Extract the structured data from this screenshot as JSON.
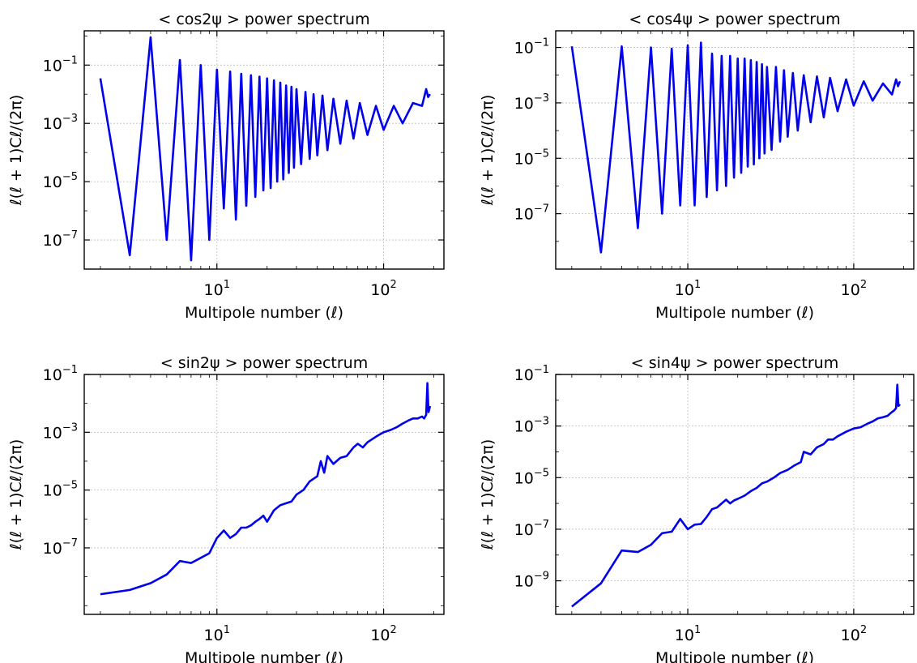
{
  "figure": {
    "line_color": "#0000ee",
    "grid": true,
    "grid_style": "dotted"
  },
  "chart_data": [
    {
      "type": "line",
      "title": "< cos2ψ >  power spectrum",
      "xlabel": "Multipole number (ℓ)",
      "ylabel": "ℓ(ℓ + 1)Cℓ/(2π)",
      "xscale": "log",
      "yscale": "log",
      "xlim": [
        1.6,
        230
      ],
      "ylim": [
        1e-08,
        1.5
      ],
      "xticks": [
        {
          "base": "10",
          "exp": "1",
          "value": 10
        },
        {
          "base": "10",
          "exp": "2",
          "value": 100
        }
      ],
      "yticks": [
        {
          "base": "10",
          "exp": "−1",
          "value": 0.1
        },
        {
          "base": "10",
          "exp": "−3",
          "value": 0.001
        },
        {
          "base": "10",
          "exp": "−5",
          "value": 1e-05
        },
        {
          "base": "10",
          "exp": "−7",
          "value": 1e-07
        }
      ],
      "series": [
        {
          "x": [
            2,
            3,
            4,
            5,
            6,
            7,
            8,
            9,
            10,
            11,
            12,
            13,
            14,
            15,
            16,
            17,
            18,
            19,
            20,
            21,
            22,
            23,
            24,
            25,
            26,
            27,
            28,
            29,
            30,
            32,
            34,
            36,
            38,
            40,
            43,
            46,
            50,
            55,
            60,
            66,
            72,
            80,
            90,
            100,
            115,
            130,
            150,
            170,
            180,
            185,
            190
          ],
          "y": [
            0.035,
            3e-08,
            0.9,
            1e-07,
            0.15,
            2e-08,
            0.1,
            1e-07,
            0.07,
            1.2e-06,
            0.06,
            5e-07,
            0.05,
            1.5e-06,
            0.045,
            3e-06,
            0.04,
            5e-06,
            0.035,
            6e-06,
            0.03,
            1e-05,
            0.025,
            1.2e-05,
            0.02,
            2e-05,
            0.018,
            3e-05,
            0.015,
            4e-05,
            0.012,
            6e-05,
            0.01,
            8e-05,
            0.009,
            0.00012,
            0.007,
            0.0002,
            0.006,
            0.0003,
            0.005,
            0.0004,
            0.004,
            0.0006,
            0.004,
            0.001,
            0.005,
            0.004,
            0.015,
            0.008,
            0.01
          ]
        }
      ]
    },
    {
      "type": "line",
      "title": "< cos4ψ >  power spectrum",
      "xlabel": "Multipole number (ℓ)",
      "ylabel": "ℓ(ℓ + 1)Cℓ/(2π)",
      "xscale": "log",
      "yscale": "log",
      "xlim": [
        1.6,
        230
      ],
      "ylim": [
        1e-09,
        0.4
      ],
      "xticks": [
        {
          "base": "10",
          "exp": "1",
          "value": 10
        },
        {
          "base": "10",
          "exp": "2",
          "value": 100
        }
      ],
      "yticks": [
        {
          "base": "10",
          "exp": "−1",
          "value": 0.1
        },
        {
          "base": "10",
          "exp": "−3",
          "value": 0.001
        },
        {
          "base": "10",
          "exp": "−5",
          "value": 1e-05
        },
        {
          "base": "10",
          "exp": "−7",
          "value": 1e-07
        }
      ],
      "series": [
        {
          "x": [
            2,
            3,
            4,
            5,
            6,
            7,
            8,
            9,
            10,
            11,
            12,
            13,
            14,
            15,
            16,
            17,
            18,
            19,
            20,
            21,
            22,
            23,
            24,
            25,
            26,
            27,
            28,
            29,
            30,
            32,
            34,
            36,
            38,
            40,
            43,
            46,
            50,
            55,
            60,
            66,
            72,
            80,
            90,
            100,
            115,
            130,
            150,
            170,
            180,
            185,
            190
          ],
          "y": [
            0.11,
            4e-09,
            0.11,
            3e-08,
            0.1,
            1e-07,
            0.09,
            2e-07,
            0.12,
            2e-07,
            0.15,
            4e-07,
            0.06,
            7e-07,
            0.05,
            1e-06,
            0.05,
            2e-06,
            0.04,
            3e-06,
            0.04,
            5e-06,
            0.035,
            6e-06,
            0.03,
            1e-05,
            0.025,
            1.5e-05,
            0.02,
            2e-05,
            0.02,
            4e-05,
            0.015,
            6e-05,
            0.012,
            0.0001,
            0.01,
            0.0002,
            0.009,
            0.0003,
            0.008,
            0.0005,
            0.007,
            0.0008,
            0.006,
            0.0012,
            0.005,
            0.002,
            0.007,
            0.004,
            0.006
          ]
        }
      ]
    },
    {
      "type": "line",
      "title": "< sin2ψ >  power spectrum",
      "xlabel": "Multipole number (ℓ)",
      "ylabel": "ℓ(ℓ + 1)Cℓ/(2π)",
      "xscale": "log",
      "yscale": "log",
      "xlim": [
        1.6,
        230
      ],
      "ylim": [
        5e-10,
        0.1
      ],
      "xticks": [
        {
          "base": "10",
          "exp": "1",
          "value": 10
        },
        {
          "base": "10",
          "exp": "2",
          "value": 100
        }
      ],
      "yticks": [
        {
          "base": "10",
          "exp": "−1",
          "value": 0.1
        },
        {
          "base": "10",
          "exp": "−3",
          "value": 0.001
        },
        {
          "base": "10",
          "exp": "−5",
          "value": 1e-05
        },
        {
          "base": "10",
          "exp": "−7",
          "value": 1e-07
        }
      ],
      "series": [
        {
          "x": [
            2,
            3,
            4,
            5,
            6,
            7,
            8,
            9,
            10,
            11,
            12,
            13,
            14,
            15,
            16,
            17,
            18,
            19,
            20,
            22,
            24,
            26,
            28,
            30,
            33,
            36,
            40,
            42,
            44,
            46,
            50,
            55,
            60,
            66,
            70,
            75,
            80,
            90,
            100,
            110,
            120,
            130,
            140,
            150,
            160,
            170,
            175,
            180,
            183,
            186,
            190
          ],
          "y": [
            2.5e-09,
            3.5e-09,
            6e-09,
            1.2e-08,
            3.5e-08,
            3e-08,
            4.5e-08,
            6.5e-08,
            2.2e-07,
            4e-07,
            2.2e-07,
            3e-07,
            5e-07,
            5e-07,
            6e-07,
            8e-07,
            1e-06,
            1.3e-06,
            8e-07,
            2e-06,
            3e-06,
            3.5e-06,
            4e-06,
            7e-06,
            1e-05,
            2e-05,
            3e-05,
            0.0001,
            4e-05,
            0.00015,
            8e-05,
            0.00013,
            0.00015,
            0.0003,
            0.0004,
            0.0003,
            0.00045,
            0.0007,
            0.001,
            0.0012,
            0.0015,
            0.002,
            0.0025,
            0.003,
            0.003,
            0.0035,
            0.003,
            0.004,
            0.05,
            0.005,
            0.008
          ]
        }
      ]
    },
    {
      "type": "line",
      "title": "< sin4ψ >  power spectrum",
      "xlabel": "Multipole number (ℓ)",
      "ylabel": "ℓ(ℓ + 1)Cℓ/(2π)",
      "xscale": "log",
      "yscale": "log",
      "xlim": [
        1.6,
        230
      ],
      "ylim": [
        5e-11,
        0.1
      ],
      "xticks": [
        {
          "base": "10",
          "exp": "1",
          "value": 10
        },
        {
          "base": "10",
          "exp": "2",
          "value": 100
        }
      ],
      "yticks": [
        {
          "base": "10",
          "exp": "−1",
          "value": 0.1
        },
        {
          "base": "10",
          "exp": "−3",
          "value": 0.001
        },
        {
          "base": "10",
          "exp": "−5",
          "value": 1e-05
        },
        {
          "base": "10",
          "exp": "−7",
          "value": 1e-07
        },
        {
          "base": "10",
          "exp": "−9",
          "value": 1e-09
        }
      ],
      "series": [
        {
          "x": [
            2,
            3,
            4,
            5,
            6,
            7,
            8,
            9,
            10,
            11,
            12,
            13,
            14,
            15,
            16,
            17,
            18,
            19,
            20,
            22,
            24,
            26,
            28,
            30,
            33,
            36,
            40,
            44,
            48,
            50,
            55,
            60,
            66,
            70,
            75,
            80,
            90,
            100,
            110,
            120,
            130,
            140,
            150,
            160,
            170,
            175,
            180,
            183,
            186,
            190
          ],
          "y": [
            1e-10,
            8e-10,
            1.5e-08,
            1.3e-08,
            2.5e-08,
            7e-08,
            8e-08,
            2.5e-07,
            1e-07,
            1.5e-07,
            1.6e-07,
            3e-07,
            6e-07,
            7e-07,
            1e-06,
            1.4e-06,
            1e-06,
            1.3e-06,
            1.5e-06,
            2e-06,
            3e-06,
            4e-06,
            6e-06,
            7e-06,
            1e-05,
            1.5e-05,
            2e-05,
            3e-05,
            4e-05,
            0.0001,
            8e-05,
            0.00015,
            0.0002,
            0.0003,
            0.0003,
            0.0004,
            0.0006,
            0.0008,
            0.0009,
            0.0012,
            0.0015,
            0.002,
            0.0022,
            0.0025,
            0.0035,
            0.004,
            0.005,
            0.04,
            0.006,
            0.007
          ]
        }
      ]
    }
  ]
}
